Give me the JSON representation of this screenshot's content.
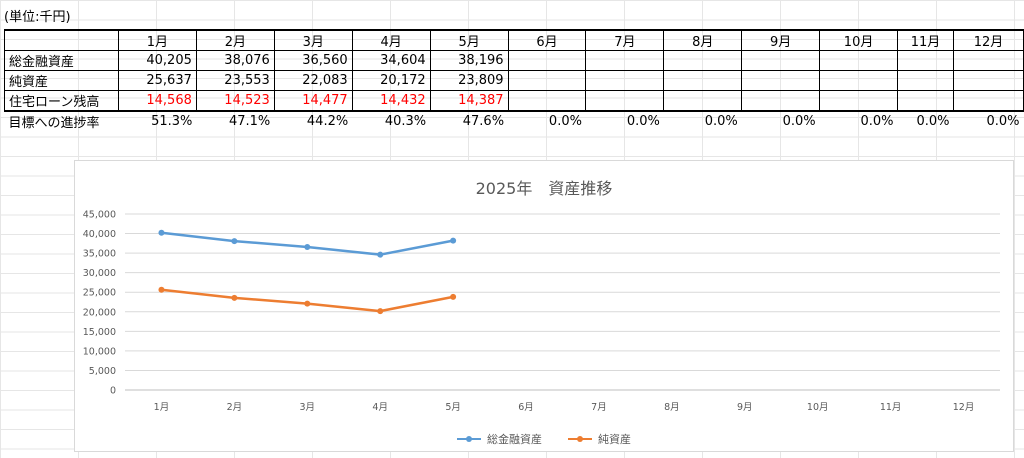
{
  "sheet": {
    "unit_label": "(単位:千円)",
    "months": [
      "1月",
      "2月",
      "3月",
      "4月",
      "5月",
      "6月",
      "7月",
      "8月",
      "9月",
      "10月",
      "11月",
      "12月"
    ],
    "rows": [
      {
        "label": "総金融資産",
        "values": [
          "40,205",
          "38,076",
          "36,560",
          "34,604",
          "38,196",
          "",
          "",
          "",
          "",
          "",
          "",
          ""
        ],
        "red": false
      },
      {
        "label": "純資産",
        "values": [
          "25,637",
          "23,553",
          "22,083",
          "20,172",
          "23,809",
          "",
          "",
          "",
          "",
          "",
          "",
          ""
        ],
        "red": false
      },
      {
        "label": "住宅ローン残高",
        "values": [
          "14,568",
          "14,523",
          "14,477",
          "14,432",
          "14,387",
          "",
          "",
          "",
          "",
          "",
          "",
          ""
        ],
        "red": true
      }
    ],
    "goal_row": {
      "label": "目標への進捗率",
      "values": [
        "51.3%",
        "47.1%",
        "44.2%",
        "40.3%",
        "47.6%",
        "0.0%",
        "0.0%",
        "0.0%",
        "0.0%",
        "0.0%",
        "0.0%",
        "0.0%"
      ]
    }
  },
  "chart_data": {
    "type": "line",
    "title": "2025年　資産推移",
    "categories": [
      "1月",
      "2月",
      "3月",
      "4月",
      "5月",
      "6月",
      "7月",
      "8月",
      "9月",
      "10月",
      "11月",
      "12月"
    ],
    "series": [
      {
        "name": "総金融資産",
        "color": "#5b9bd5",
        "values": [
          40205,
          38076,
          36560,
          34604,
          38196,
          null,
          null,
          null,
          null,
          null,
          null,
          null
        ]
      },
      {
        "name": "純資産",
        "color": "#ed7d31",
        "values": [
          25637,
          23553,
          22083,
          20172,
          23809,
          null,
          null,
          null,
          null,
          null,
          null,
          null
        ]
      }
    ],
    "ylim": [
      0,
      45000
    ],
    "yticks": [
      0,
      5000,
      10000,
      15000,
      20000,
      25000,
      30000,
      35000,
      40000,
      45000
    ],
    "ytick_labels": [
      "0",
      "5,000",
      "10,000",
      "15,000",
      "20,000",
      "25,000",
      "30,000",
      "35,000",
      "40,000",
      "45,000"
    ],
    "grid": true,
    "legend": "bottom"
  }
}
